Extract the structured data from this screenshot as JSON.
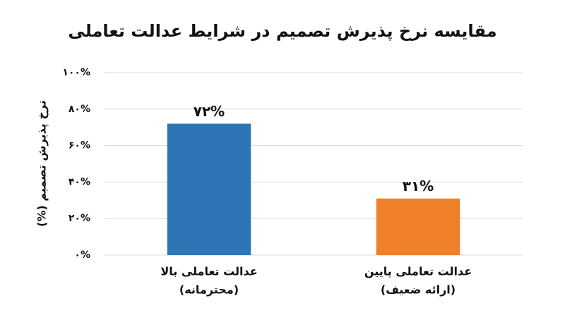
{
  "chart_data": {
    "type": "bar",
    "title": "مقایسه نرخ پذیرش تصمیم در شرایط عدالت تعاملی",
    "y_label": "نرخ پذیرش تصمیم (%)",
    "categories": [
      [
        "عدالت تعاملی بالا",
        "(محترمانه)"
      ],
      [
        "عدالت تعاملی پایین",
        "(ارائه ضعیف)"
      ]
    ],
    "values": [
      72,
      31
    ],
    "value_labels": [
      "۷۲%",
      "۳۱%"
    ],
    "colors": [
      "#2e75b6",
      "#f07f2a"
    ],
    "ylim": [
      0,
      100
    ],
    "yticks": [
      {
        "value": 0,
        "label": "۰%"
      },
      {
        "value": 20,
        "label": "۲۰%"
      },
      {
        "value": 40,
        "label": "۴۰%"
      },
      {
        "value": 60,
        "label": "۶۰%"
      },
      {
        "value": 80,
        "label": "۸۰%"
      },
      {
        "value": 100,
        "label": "۱۰۰%"
      }
    ],
    "grid": true
  }
}
